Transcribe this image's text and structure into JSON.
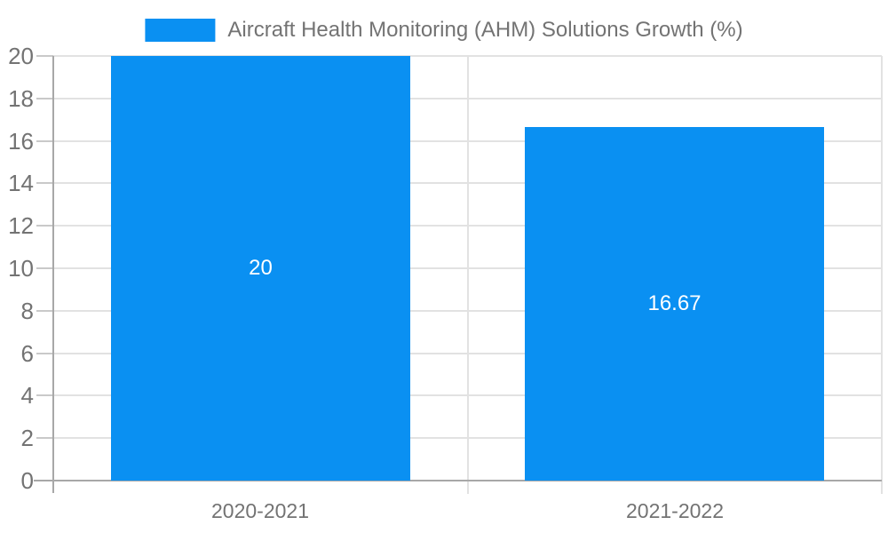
{
  "chart_data": {
    "type": "bar",
    "title": "Aircraft Health Monitoring (AHM) Solutions Growth (%)",
    "categories": [
      "2020-2021",
      "2021-2022"
    ],
    "values": [
      20,
      16.67
    ],
    "bar_labels": [
      "20",
      "16.67"
    ],
    "xlabel": "",
    "ylabel": "",
    "ylim": [
      0,
      20
    ],
    "yticks": [
      0,
      2,
      4,
      6,
      8,
      10,
      12,
      14,
      16,
      18,
      20
    ],
    "grid": true,
    "legend_position": "top-center",
    "colors": {
      "bar": "#0a90f2",
      "grid": "#e2e2e2",
      "axis": "#a8a8a8",
      "tick": "#c9c9c9",
      "text": "#737373",
      "bar_label_text": "#ffffff",
      "background": "#ffffff"
    }
  }
}
